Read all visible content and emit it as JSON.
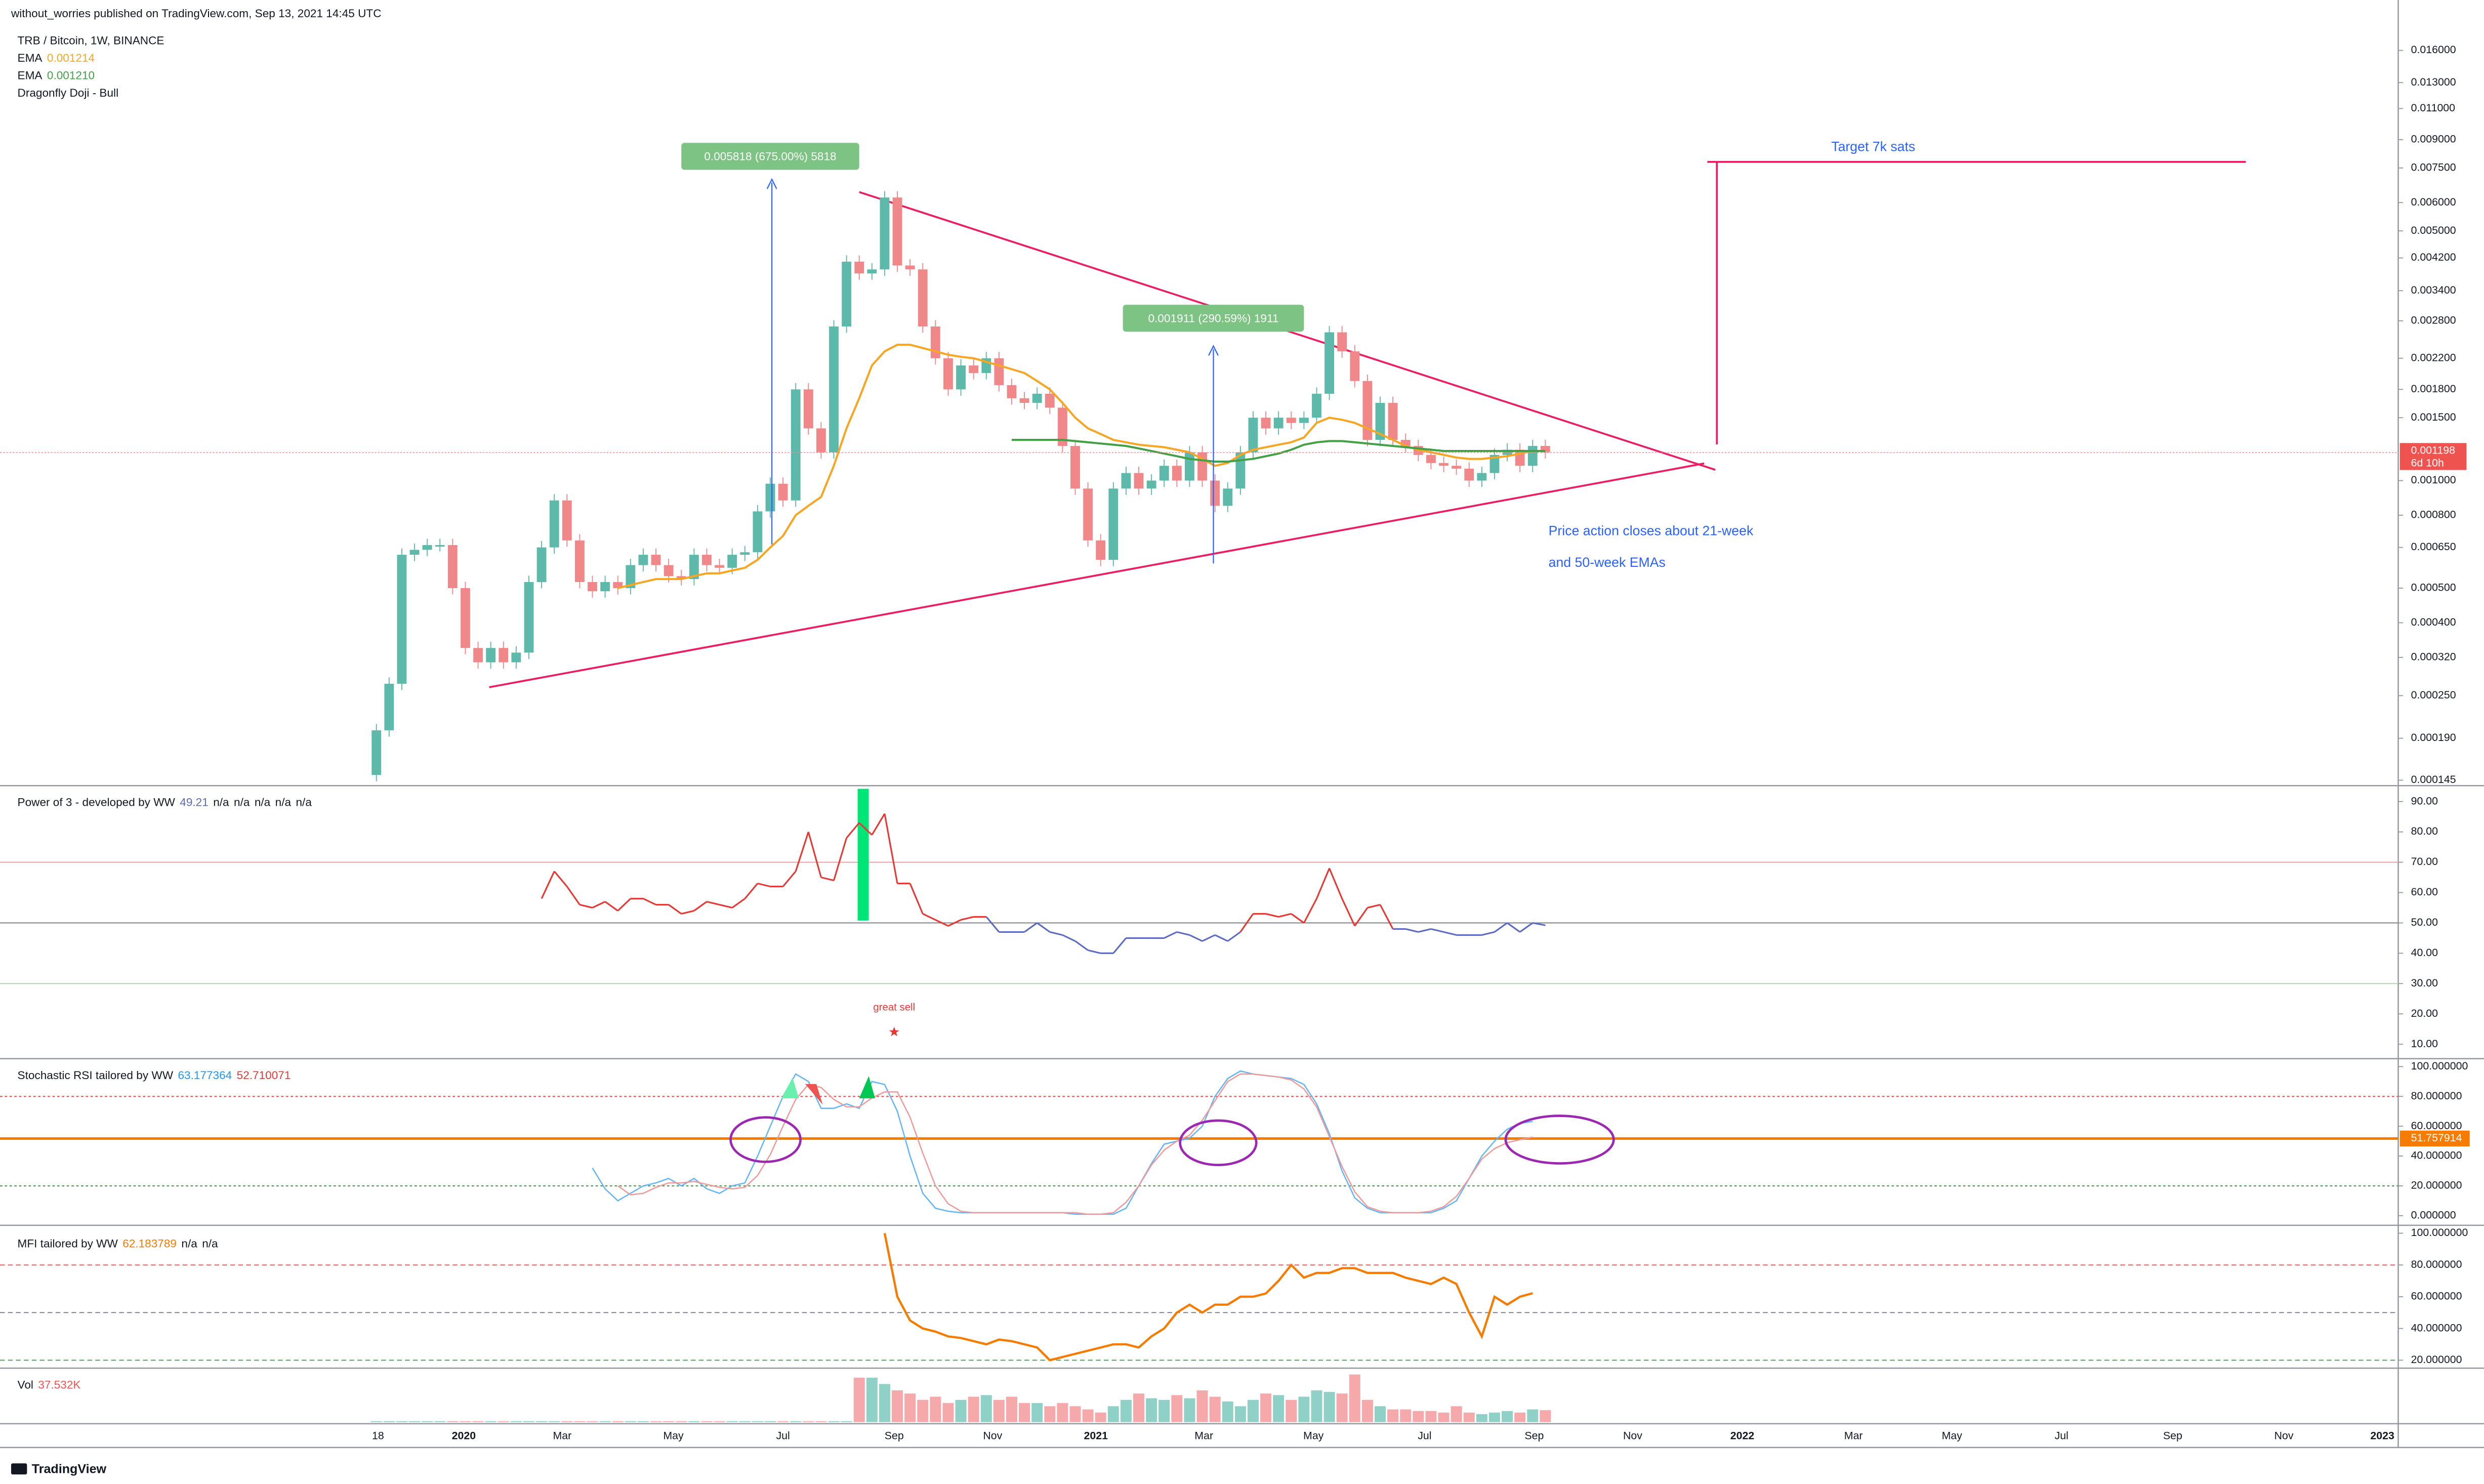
{
  "header": {
    "publisher": "without_worries published on TradingView.com, Sep 13, 2021 14:45 UTC"
  },
  "footer": {
    "logo": "TradingView"
  },
  "chart_data": [
    {
      "type": "candlestick",
      "title": "TRB / Bitcoin, 1W, BINANCE",
      "up_color": "#5db9a9",
      "down_color": "#f0888a",
      "log_scale": true,
      "grid": false,
      "open": [
        0.00015,
        0.0002,
        0.00027,
        0.00062,
        0.00064,
        0.00066,
        0.00066,
        0.0005,
        0.00034,
        0.00031,
        0.00034,
        0.00031,
        0.00033,
        0.00052,
        0.00065,
        0.00088,
        0.00068,
        0.00052,
        0.00049,
        0.00052,
        0.0005,
        0.00058,
        0.00062,
        0.00058,
        0.00054,
        0.00053,
        0.00062,
        0.00058,
        0.00057,
        0.00062,
        0.00063,
        0.00082,
        0.00098,
        0.00088,
        0.0018,
        0.0014,
        0.0012,
        0.0027,
        0.0041,
        0.0038,
        0.0039,
        0.0062,
        0.004,
        0.0039,
        0.0027,
        0.0022,
        0.0018,
        0.0021,
        0.002,
        0.0022,
        0.00185,
        0.0017,
        0.00165,
        0.00175,
        0.0016,
        0.00125,
        0.00095,
        0.00068,
        0.0006,
        0.00095,
        0.00105,
        0.00095,
        0.001,
        0.0011,
        0.001,
        0.0012,
        0.001,
        0.00085,
        0.00095,
        0.0012,
        0.0015,
        0.0014,
        0.0015,
        0.00145,
        0.0015,
        0.00175,
        0.0026,
        0.0023,
        0.0019,
        0.0013,
        0.00165,
        0.0013,
        0.00125,
        0.00118,
        0.00112,
        0.0011,
        0.00108,
        0.001,
        0.00105,
        0.00118,
        0.00122,
        0.0011,
        0.00125
      ],
      "close": [
        0.0002,
        0.00027,
        0.00062,
        0.00064,
        0.00066,
        0.00066,
        0.0005,
        0.00034,
        0.00031,
        0.00034,
        0.00031,
        0.00033,
        0.00052,
        0.00065,
        0.00088,
        0.00068,
        0.00052,
        0.00049,
        0.00052,
        0.0005,
        0.00058,
        0.00062,
        0.00058,
        0.00054,
        0.00053,
        0.00062,
        0.00058,
        0.00057,
        0.00062,
        0.00063,
        0.00082,
        0.00098,
        0.00088,
        0.0018,
        0.0014,
        0.0012,
        0.0027,
        0.0041,
        0.0038,
        0.0039,
        0.0062,
        0.004,
        0.0039,
        0.0027,
        0.0022,
        0.0018,
        0.0021,
        0.002,
        0.0022,
        0.00185,
        0.0017,
        0.00165,
        0.00175,
        0.0016,
        0.00125,
        0.00095,
        0.00068,
        0.0006,
        0.00095,
        0.00105,
        0.00095,
        0.001,
        0.0011,
        0.001,
        0.0012,
        0.001,
        0.00085,
        0.00095,
        0.0012,
        0.0015,
        0.0014,
        0.0015,
        0.00145,
        0.0015,
        0.00175,
        0.0026,
        0.0023,
        0.0019,
        0.0013,
        0.00165,
        0.0013,
        0.00125,
        0.00118,
        0.00112,
        0.0011,
        0.00108,
        0.001,
        0.00105,
        0.00118,
        0.00122,
        0.0011,
        0.00125,
        0.0012
      ],
      "series": [
        {
          "name": "EMA",
          "color": "#f5a623",
          "legend_value": "0.001214",
          "values": [
            null,
            null,
            null,
            null,
            null,
            null,
            null,
            null,
            null,
            null,
            null,
            null,
            null,
            null,
            null,
            null,
            null,
            null,
            null,
            0.0005,
            0.00051,
            0.00052,
            0.00053,
            0.00053,
            0.00053,
            0.00054,
            0.00055,
            0.00055,
            0.00056,
            0.00057,
            0.0006,
            0.00065,
            0.0007,
            0.0008,
            0.00085,
            0.0009,
            0.0011,
            0.0014,
            0.0017,
            0.0021,
            0.0023,
            0.0024,
            0.0024,
            0.00235,
            0.0023,
            0.00225,
            0.00222,
            0.0022,
            0.00215,
            0.0021,
            0.00205,
            0.002,
            0.0019,
            0.0018,
            0.00165,
            0.0015,
            0.0014,
            0.00135,
            0.0013,
            0.00128,
            0.00126,
            0.00125,
            0.00124,
            0.00122,
            0.0012,
            0.00115,
            0.0011,
            0.00112,
            0.00118,
            0.00122,
            0.00124,
            0.00126,
            0.00128,
            0.00132,
            0.00145,
            0.0015,
            0.00148,
            0.00145,
            0.0014,
            0.00135,
            0.0013,
            0.00125,
            0.00122,
            0.0012,
            0.00118,
            0.00116,
            0.00115,
            0.00115,
            0.00116,
            0.00117,
            0.00119,
            0.00121,
            0.00121
          ]
        },
        {
          "name": "EMA",
          "color": "#43a047",
          "legend_value": "0.001210",
          "values": [
            null,
            null,
            null,
            null,
            null,
            null,
            null,
            null,
            null,
            null,
            null,
            null,
            null,
            null,
            null,
            null,
            null,
            null,
            null,
            null,
            null,
            null,
            null,
            null,
            null,
            null,
            null,
            null,
            null,
            null,
            null,
            null,
            null,
            null,
            null,
            null,
            null,
            null,
            null,
            null,
            null,
            null,
            null,
            null,
            null,
            null,
            null,
            null,
            null,
            null,
            0.0013,
            0.0013,
            0.0013,
            0.0013,
            0.0013,
            0.00129,
            0.00128,
            0.00127,
            0.00126,
            0.00125,
            0.00123,
            0.00121,
            0.00119,
            0.00117,
            0.00115,
            0.00114,
            0.00113,
            0.00113,
            0.00114,
            0.00115,
            0.00117,
            0.00119,
            0.00122,
            0.00126,
            0.00128,
            0.00129,
            0.00129,
            0.00128,
            0.00127,
            0.00126,
            0.00125,
            0.00124,
            0.00123,
            0.00122,
            0.00121,
            0.00121,
            0.00121,
            0.00121,
            0.00121,
            0.00121,
            0.00121,
            0.00121,
            0.00121
          ]
        }
      ],
      "pattern": "Dragonfly Doji - Bull",
      "ylim": [
        0.00014,
        0.0204
      ],
      "yticks": [
        {
          "value": 0.016,
          "label": "0.016000"
        },
        {
          "value": 0.013,
          "label": "0.013000"
        },
        {
          "value": 0.011,
          "label": "0.011000"
        },
        {
          "value": 0.009,
          "label": "0.009000"
        },
        {
          "value": 0.0075,
          "label": "0.007500"
        },
        {
          "value": 0.006,
          "label": "0.006000"
        },
        {
          "value": 0.005,
          "label": "0.005000"
        },
        {
          "value": 0.0042,
          "label": "0.004200"
        },
        {
          "value": 0.0034,
          "label": "0.003400"
        },
        {
          "value": 0.0028,
          "label": "0.002800"
        },
        {
          "value": 0.0022,
          "label": "0.002200"
        },
        {
          "value": 0.0018,
          "label": "0.001800"
        },
        {
          "value": 0.0015,
          "label": "0.001500"
        },
        {
          "value": 0.001,
          "label": "0.001000"
        },
        {
          "value": 0.0008,
          "label": "0.000800"
        },
        {
          "value": 0.00065,
          "label": "0.000650"
        },
        {
          "value": 0.0005,
          "label": "0.000500"
        },
        {
          "value": 0.0004,
          "label": "0.000400"
        },
        {
          "value": 0.00032,
          "label": "0.000320"
        },
        {
          "value": 0.00025,
          "label": "0.000250"
        },
        {
          "value": 0.00019,
          "label": "0.000190"
        },
        {
          "value": 0.000145,
          "label": "0.000145"
        }
      ],
      "last_price": 0.001198,
      "countdown": "6d 10h",
      "annotations": [
        "0.005818 (675.00%) 5818",
        "0.001911 (290.59%) 1911",
        "Target 7k sats",
        "Price action closes about 21-week",
        "and 50-week EMAs"
      ],
      "x_labels": [
        "18",
        "2020",
        "Mar",
        "May",
        "Jul",
        "Sep",
        "Nov",
        "2021",
        "Mar",
        "May",
        "Jul",
        "Sep",
        "Nov",
        "2022",
        "Mar",
        "May",
        "Jul",
        "Sep",
        "Nov",
        "2023"
      ]
    },
    {
      "type": "line",
      "title": "Power of 3 - developed by WW",
      "legend_values": [
        "49.21",
        "n/a",
        "n/a",
        "n/a",
        "n/a",
        "n/a"
      ],
      "above_color": "#e53935",
      "below_color": "#5c6bc0",
      "values": [
        null,
        null,
        null,
        null,
        null,
        null,
        null,
        null,
        null,
        null,
        null,
        null,
        null,
        58,
        67,
        62,
        56,
        55,
        57,
        54,
        58,
        58,
        56,
        56,
        53,
        54,
        57,
        56,
        55,
        58,
        63,
        62,
        62,
        67,
        80,
        65,
        64,
        78,
        83,
        79,
        86,
        63,
        63,
        53,
        51,
        49,
        51,
        52,
        52,
        47,
        47,
        47,
        50,
        47,
        46,
        44,
        41,
        40,
        40,
        45,
        45,
        45,
        45,
        47,
        46,
        44,
        46,
        44,
        47,
        53,
        53,
        52,
        53,
        50,
        58,
        68,
        58,
        49,
        55,
        56,
        48,
        48,
        47,
        48,
        47,
        46,
        46,
        46,
        47,
        50,
        47,
        50,
        49.21
      ],
      "levels": [
        70,
        50,
        30
      ],
      "ylim": [
        6.3,
        94.2
      ],
      "yticks": [
        {
          "value": 90,
          "label": "90.00"
        },
        {
          "value": 80,
          "label": "80.00"
        },
        {
          "value": 70,
          "label": "70.00"
        },
        {
          "value": 60,
          "label": "60.00"
        },
        {
          "value": 50,
          "label": "50.00"
        },
        {
          "value": 40,
          "label": "40.00"
        },
        {
          "value": 30,
          "label": "30.00"
        },
        {
          "value": 20,
          "label": "20.00"
        },
        {
          "value": 10,
          "label": "10.00"
        }
      ],
      "annotation": "great sell"
    },
    {
      "type": "line",
      "title": "Stochastic RSI tailored by WW",
      "series": [
        {
          "color": "#64b5f6",
          "legend_value": "63.177364",
          "values": [
            null,
            null,
            null,
            null,
            null,
            null,
            null,
            null,
            null,
            null,
            null,
            null,
            null,
            null,
            null,
            null,
            null,
            32,
            18,
            10,
            15,
            20,
            22,
            25,
            20,
            25,
            18,
            15,
            20,
            22,
            40,
            60,
            80,
            95,
            90,
            72,
            72,
            75,
            72,
            90,
            88,
            70,
            40,
            15,
            5,
            3,
            2,
            2,
            2,
            2,
            2,
            2,
            2,
            2,
            2,
            1,
            1,
            1,
            1,
            5,
            20,
            35,
            48,
            50,
            52,
            60,
            80,
            92,
            97,
            95,
            94,
            93,
            92,
            88,
            75,
            55,
            30,
            12,
            5,
            2,
            2,
            2,
            2,
            2,
            5,
            10,
            25,
            40,
            50,
            58,
            62,
            63.177364,
            null
          ]
        },
        {
          "color": "#ef9a9a",
          "legend_value": "52.710071",
          "values": [
            null,
            null,
            null,
            null,
            null,
            null,
            null,
            null,
            null,
            null,
            null,
            null,
            null,
            null,
            null,
            null,
            null,
            null,
            null,
            20,
            14,
            15,
            19,
            22,
            22,
            23,
            21,
            19,
            18,
            19,
            27,
            41,
            60,
            78,
            88,
            86,
            78,
            73,
            73,
            79,
            83,
            83,
            66,
            42,
            20,
            8,
            3,
            2,
            2,
            2,
            2,
            2,
            2,
            2,
            2,
            2,
            1,
            1,
            2,
            9,
            20,
            34,
            44,
            50,
            54,
            64,
            77,
            90,
            95,
            95,
            94,
            93,
            91,
            85,
            73,
            53,
            33,
            16,
            6,
            3,
            2,
            2,
            2,
            3,
            6,
            13,
            25,
            38,
            45,
            49,
            51,
            52.710071,
            null
          ]
        }
      ],
      "levels": [
        80,
        20
      ],
      "marker": 51.757914,
      "marker_color": "#f57c00",
      "ylim": [
        -4.3,
        103.2
      ],
      "yticks": [
        {
          "value": 100,
          "label": "100.000000"
        },
        {
          "value": 80,
          "label": "80.000000"
        },
        {
          "value": 60,
          "label": "60.000000"
        },
        {
          "value": 40,
          "label": "40.000000"
        },
        {
          "value": 20,
          "label": "20.000000"
        },
        {
          "value": 0,
          "label": "0.000000"
        }
      ]
    },
    {
      "type": "line",
      "title": "MFI tailored by WW",
      "legend_values": [
        "62.183789",
        "n/a",
        "n/a"
      ],
      "color": "#f57c00",
      "values": [
        null,
        null,
        null,
        null,
        null,
        null,
        null,
        null,
        null,
        null,
        null,
        null,
        null,
        null,
        null,
        null,
        null,
        null,
        null,
        null,
        null,
        null,
        null,
        null,
        null,
        null,
        null,
        null,
        null,
        null,
        null,
        null,
        null,
        null,
        null,
        null,
        null,
        null,
        null,
        null,
        100,
        60,
        45,
        40,
        38,
        35,
        34,
        32,
        30,
        33,
        32,
        30,
        28,
        20,
        22,
        24,
        26,
        28,
        30,
        30,
        28,
        35,
        40,
        50,
        55,
        50,
        55,
        55,
        60,
        60,
        62,
        70,
        80,
        72,
        75,
        75,
        78,
        78,
        75,
        75,
        75,
        72,
        70,
        68,
        72,
        68,
        50,
        35,
        60,
        55,
        60,
        62.183789,
        null
      ],
      "levels": [
        80,
        50,
        20
      ],
      "ylim": [
        17,
        103
      ],
      "yticks": [
        {
          "value": 100,
          "label": "100.000000"
        },
        {
          "value": 80,
          "label": "80.000000"
        },
        {
          "value": 60,
          "label": "60.000000"
        },
        {
          "value": 40,
          "label": "40.000000"
        },
        {
          "value": 20,
          "label": "20.000000"
        }
      ]
    },
    {
      "type": "bar",
      "title": "Vol",
      "legend_value": "37.532K",
      "ylim": [
        0,
        160000
      ],
      "values": [
        3000,
        3000,
        3000,
        3000,
        3000,
        3000,
        3000,
        3000,
        3000,
        3000,
        3000,
        3000,
        3000,
        3000,
        3000,
        3000,
        3000,
        3000,
        3000,
        3000,
        3000,
        3000,
        3000,
        3000,
        3000,
        3000,
        3000,
        3000,
        3000,
        3000,
        3000,
        3000,
        3000,
        3000,
        3000,
        3000,
        3000,
        3000,
        140000,
        140000,
        120000,
        100000,
        90000,
        70000,
        80000,
        60000,
        70000,
        80000,
        85000,
        70000,
        80000,
        60000,
        60000,
        50000,
        60000,
        50000,
        40000,
        30000,
        50000,
        70000,
        90000,
        75000,
        70000,
        85000,
        75000,
        100000,
        80000,
        65000,
        50000,
        70000,
        90000,
        85000,
        70000,
        80000,
        100000,
        95000,
        90000,
        150000,
        70000,
        50000,
        40000,
        40000,
        35000,
        35000,
        30000,
        50000,
        30000,
        25000,
        30000,
        35000,
        30000,
        40000,
        37532
      ]
    }
  ]
}
